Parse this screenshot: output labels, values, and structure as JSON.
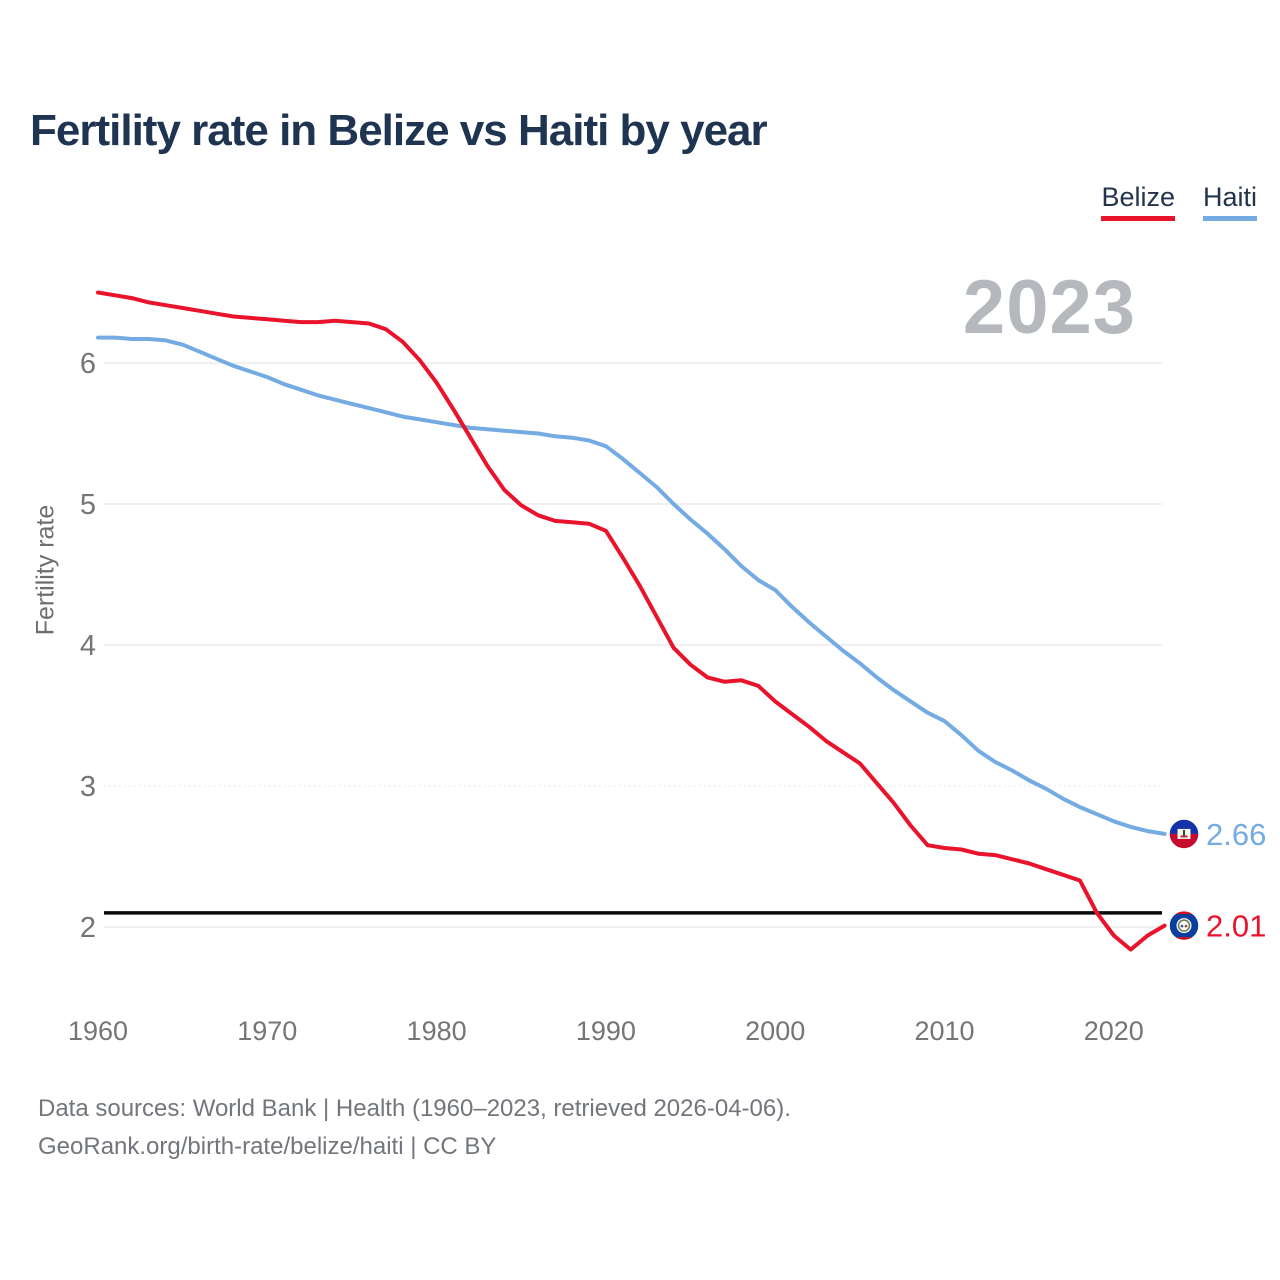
{
  "title": "Fertility rate in Belize vs Haiti by year",
  "watermark": "2023",
  "legend": {
    "belize": {
      "label": "Belize",
      "color": "#e9132b"
    },
    "haiti": {
      "label": "Haiti",
      "color": "#74abe2"
    }
  },
  "y_axis": {
    "label": "Fertility rate",
    "ticks": [
      2,
      3,
      4,
      5,
      6
    ]
  },
  "x_axis": {
    "ticks": [
      1960,
      1970,
      1980,
      1990,
      2000,
      2010,
      2020
    ]
  },
  "reference_line": {
    "value": 2.1,
    "color": "#0b0b0b"
  },
  "end_labels": {
    "haiti": {
      "value": "2.66",
      "flag": "haiti-flag"
    },
    "belize": {
      "value": "2.01",
      "flag": "belize-flag"
    }
  },
  "footer": {
    "line1": "Data sources: World Bank | Health (1960–2023, retrieved 2026-04-06).",
    "line2": "GeoRank.org/birth-rate/belize/haiti | CC BY"
  },
  "colors": {
    "grid": "#e8e8e8",
    "axis_text": "#757575",
    "belize": "#e9132b",
    "haiti": "#74abe2",
    "reference": "#0b0b0b",
    "haiti_flag_blue": "#1433a8",
    "haiti_flag_red": "#c40b2e",
    "belize_flag_blue": "#0a3f9e",
    "belize_flag_red": "#ce1126"
  },
  "chart_data": {
    "type": "line",
    "title": "Fertility rate in Belize vs Haiti by year",
    "xlabel": "",
    "ylabel": "Fertility rate",
    "ylim": [
      1.7,
      6.6
    ],
    "grid": "horizontal",
    "legend_position": "top-right",
    "x": [
      1960,
      1961,
      1962,
      1963,
      1964,
      1965,
      1966,
      1967,
      1968,
      1969,
      1970,
      1971,
      1972,
      1973,
      1974,
      1975,
      1976,
      1977,
      1978,
      1979,
      1980,
      1981,
      1982,
      1983,
      1984,
      1985,
      1986,
      1987,
      1988,
      1989,
      1990,
      1991,
      1992,
      1993,
      1994,
      1995,
      1996,
      1997,
      1998,
      1999,
      2000,
      2001,
      2002,
      2003,
      2004,
      2005,
      2006,
      2007,
      2008,
      2009,
      2010,
      2011,
      2012,
      2013,
      2014,
      2015,
      2016,
      2017,
      2018,
      2019,
      2020,
      2021,
      2022,
      2023
    ],
    "series": [
      {
        "name": "Belize",
        "color": "#e9132b",
        "values": [
          6.5,
          6.48,
          6.46,
          6.43,
          6.41,
          6.39,
          6.37,
          6.35,
          6.33,
          6.32,
          6.31,
          6.3,
          6.29,
          6.29,
          6.3,
          6.29,
          6.28,
          6.24,
          6.15,
          6.02,
          5.86,
          5.67,
          5.47,
          5.27,
          5.1,
          4.99,
          4.92,
          4.88,
          4.87,
          4.86,
          4.81,
          4.62,
          4.42,
          4.2,
          3.98,
          3.86,
          3.77,
          3.74,
          3.75,
          3.71,
          3.6,
          3.51,
          3.42,
          3.32,
          3.24,
          3.16,
          3.02,
          2.88,
          2.72,
          2.58,
          2.56,
          2.55,
          2.52,
          2.51,
          2.48,
          2.45,
          2.41,
          2.37,
          2.33,
          2.1,
          1.94,
          1.84,
          1.94,
          2.01
        ]
      },
      {
        "name": "Haiti",
        "color": "#74abe2",
        "values": [
          6.18,
          6.18,
          6.17,
          6.17,
          6.16,
          6.13,
          6.08,
          6.03,
          5.98,
          5.94,
          5.9,
          5.85,
          5.81,
          5.77,
          5.74,
          5.71,
          5.68,
          5.65,
          5.62,
          5.6,
          5.58,
          5.56,
          5.54,
          5.53,
          5.52,
          5.51,
          5.5,
          5.48,
          5.47,
          5.45,
          5.41,
          5.32,
          5.22,
          5.12,
          5.0,
          4.89,
          4.79,
          4.68,
          4.56,
          4.46,
          4.39,
          4.27,
          4.16,
          4.06,
          3.96,
          3.87,
          3.77,
          3.68,
          3.6,
          3.52,
          3.46,
          3.36,
          3.25,
          3.17,
          3.11,
          3.04,
          2.98,
          2.91,
          2.85,
          2.8,
          2.75,
          2.71,
          2.68,
          2.66
        ]
      }
    ],
    "annotations": {
      "reference_line_y": 2.1,
      "watermark_year": "2023",
      "end_values": {
        "Belize": 2.01,
        "Haiti": 2.66
      }
    }
  }
}
